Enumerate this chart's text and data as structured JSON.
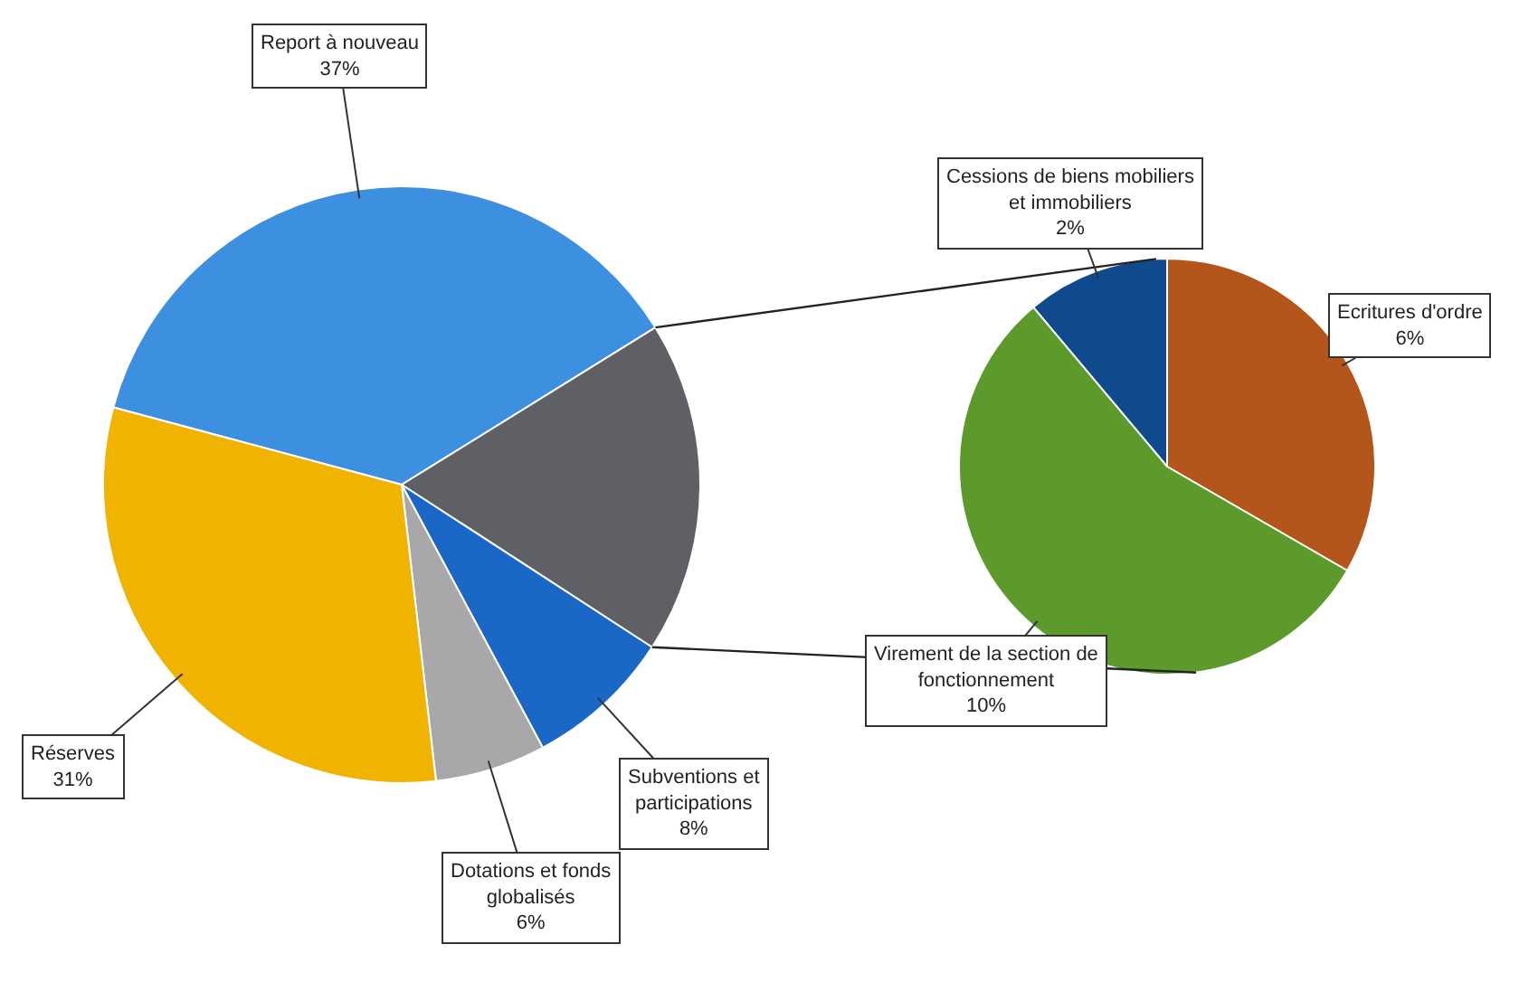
{
  "chart_data": [
    {
      "type": "pie",
      "categories": [
        "Report à nouveau",
        null,
        "Subventions et participations",
        "Dotations et fonds globalisés",
        "Réserves"
      ],
      "values": [
        37,
        18,
        8,
        6,
        31
      ],
      "colors": [
        "#3d8fdf",
        "#5e6066",
        "#1a67c6",
        "#a8a8aa",
        "#f0b300"
      ],
      "value_labels": [
        "37%",
        null,
        "8%",
        "6%",
        "31%"
      ]
    },
    {
      "type": "pie",
      "categories": [
        "Cessions de biens mobiliers et immobiliers",
        "Ecritures d'ordre",
        "Virement de la section de fonctionnement"
      ],
      "values": [
        2,
        6,
        10
      ],
      "colors": [
        "#0e4a8c",
        "#b4561b",
        "#5c9b2b"
      ],
      "value_labels": [
        "2%",
        "6%",
        "10%"
      ]
    }
  ]
}
